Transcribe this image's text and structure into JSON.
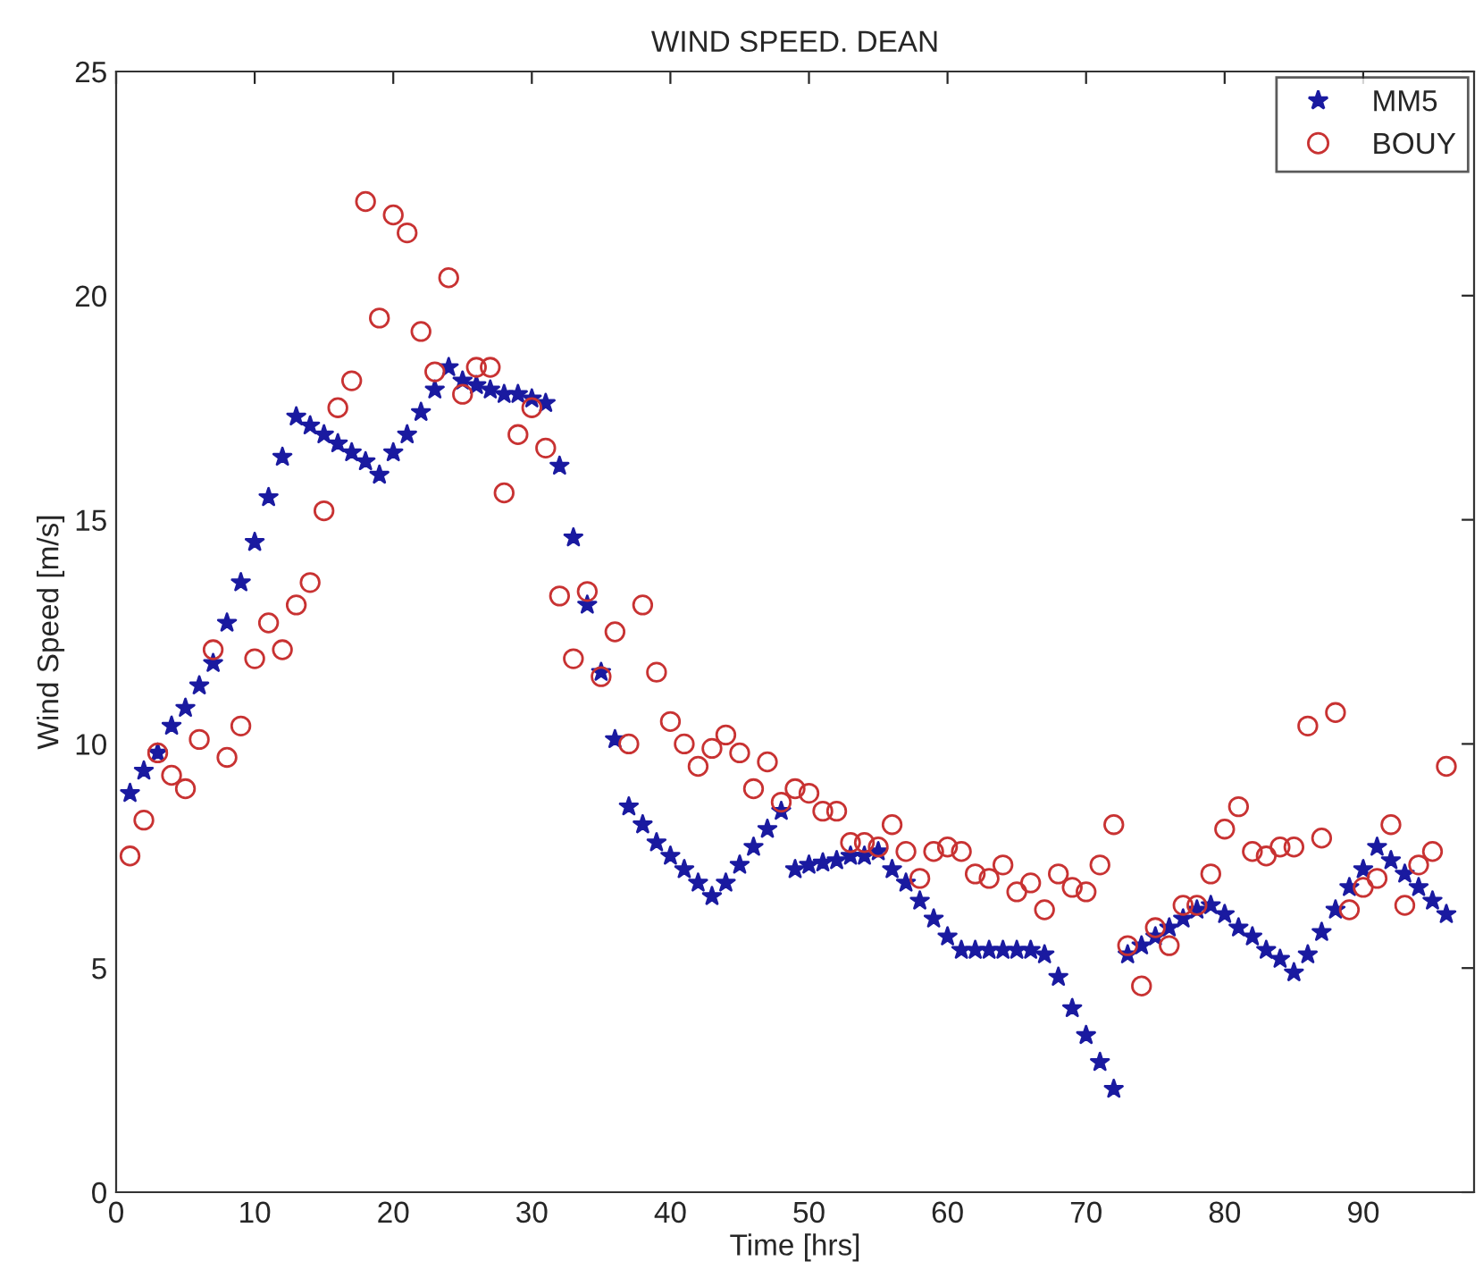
{
  "chart_data": {
    "type": "scatter",
    "title": "WIND SPEED. DEAN",
    "xlabel": "Time [hrs]",
    "ylabel": "Wind Speed [m/s]",
    "xlim": [
      0,
      98
    ],
    "ylim": [
      0,
      25
    ],
    "xticks": [
      0,
      10,
      20,
      30,
      40,
      50,
      60,
      70,
      80,
      90
    ],
    "yticks": [
      0,
      5,
      10,
      15,
      20,
      25
    ],
    "grid": false,
    "legend": "top right",
    "series": [
      {
        "name": "MM5",
        "color": "#1a1aa0",
        "marker": "star",
        "x": [
          1,
          2,
          3,
          4,
          5,
          6,
          7,
          8,
          9,
          10,
          11,
          12,
          13,
          14,
          15,
          16,
          17,
          18,
          19,
          20,
          21,
          22,
          23,
          24,
          25,
          26,
          27,
          28,
          29,
          30,
          31,
          32,
          33,
          34,
          35,
          36,
          37,
          38,
          39,
          40,
          41,
          42,
          43,
          44,
          45,
          46,
          47,
          48,
          49,
          50,
          51,
          52,
          53,
          54,
          55,
          56,
          57,
          58,
          59,
          60,
          61,
          62,
          63,
          64,
          65,
          66,
          67,
          68,
          69,
          70,
          71,
          72,
          73,
          74,
          75,
          76,
          77,
          78,
          79,
          80,
          81,
          82,
          83,
          84,
          85,
          86,
          87,
          88,
          89,
          90,
          91,
          92,
          93,
          94,
          95,
          96
        ],
        "values": [
          8.9,
          9.4,
          9.8,
          10.4,
          10.8,
          11.3,
          11.8,
          12.7,
          13.6,
          14.5,
          15.5,
          16.4,
          17.3,
          17.1,
          16.9,
          16.7,
          16.5,
          16.3,
          16.0,
          16.5,
          16.9,
          17.4,
          17.9,
          18.4,
          18.1,
          18.0,
          17.9,
          17.8,
          17.8,
          17.7,
          17.6,
          16.2,
          14.6,
          13.1,
          11.6,
          10.1,
          8.6,
          8.2,
          7.8,
          7.5,
          7.2,
          6.9,
          6.6,
          6.9,
          7.3,
          7.7,
          8.1,
          8.5,
          7.2,
          7.3,
          7.35,
          7.4,
          7.5,
          7.5,
          7.6,
          7.2,
          6.9,
          6.5,
          6.1,
          5.7,
          5.4,
          5.4,
          5.4,
          5.4,
          5.4,
          5.4,
          5.3,
          4.8,
          4.1,
          3.5,
          2.9,
          2.3,
          5.3,
          5.5,
          5.7,
          5.9,
          6.1,
          6.3,
          6.4,
          6.2,
          5.9,
          5.7,
          5.4,
          5.2,
          4.9,
          5.3,
          5.8,
          6.3,
          6.8,
          7.2,
          7.7,
          7.4,
          7.1,
          6.8,
          6.5,
          6.2
        ]
      },
      {
        "name": "BOUY",
        "color": "#c83232",
        "marker": "circle",
        "x": [
          1,
          2,
          3,
          4,
          5,
          6,
          7,
          8,
          9,
          10,
          11,
          12,
          13,
          14,
          15,
          16,
          17,
          18,
          19,
          20,
          21,
          22,
          23,
          24,
          25,
          26,
          27,
          28,
          29,
          30,
          31,
          32,
          33,
          34,
          35,
          36,
          37,
          38,
          39,
          40,
          41,
          42,
          43,
          44,
          45,
          46,
          47,
          48,
          49,
          50,
          51,
          52,
          53,
          54,
          55,
          56,
          57,
          58,
          59,
          60,
          61,
          62,
          63,
          64,
          65,
          66,
          67,
          68,
          69,
          70,
          71,
          72,
          73,
          74,
          75,
          76,
          77,
          78,
          79,
          80,
          81,
          82,
          83,
          84,
          85,
          86,
          87,
          88,
          89,
          90,
          91,
          92,
          93,
          94,
          95,
          96
        ],
        "values": [
          7.5,
          8.3,
          9.8,
          9.3,
          9.0,
          10.1,
          12.1,
          9.7,
          10.4,
          11.9,
          12.7,
          12.1,
          13.1,
          13.6,
          15.2,
          17.5,
          18.1,
          22.1,
          19.5,
          21.8,
          21.4,
          19.2,
          18.3,
          20.4,
          17.8,
          18.4,
          18.4,
          15.6,
          16.9,
          17.5,
          16.6,
          13.3,
          11.9,
          13.4,
          11.5,
          12.5,
          10.0,
          13.1,
          11.6,
          10.5,
          10.0,
          9.5,
          9.9,
          10.2,
          9.8,
          9.0,
          9.6,
          8.7,
          9.0,
          8.9,
          8.5,
          8.5,
          7.8,
          7.8,
          7.7,
          8.2,
          7.6,
          7.0,
          7.6,
          7.7,
          7.6,
          7.1,
          7.0,
          7.3,
          6.7,
          6.9,
          6.3,
          7.1,
          6.8,
          6.7,
          7.3,
          8.2,
          5.5,
          4.6,
          5.9,
          5.5,
          6.4,
          6.4,
          7.1,
          8.1,
          8.6,
          7.6,
          7.5,
          7.7,
          7.7,
          10.4,
          7.9,
          10.7,
          6.3,
          6.8,
          7.0,
          8.2,
          6.4,
          7.3,
          7.6,
          9.5
        ]
      }
    ]
  }
}
